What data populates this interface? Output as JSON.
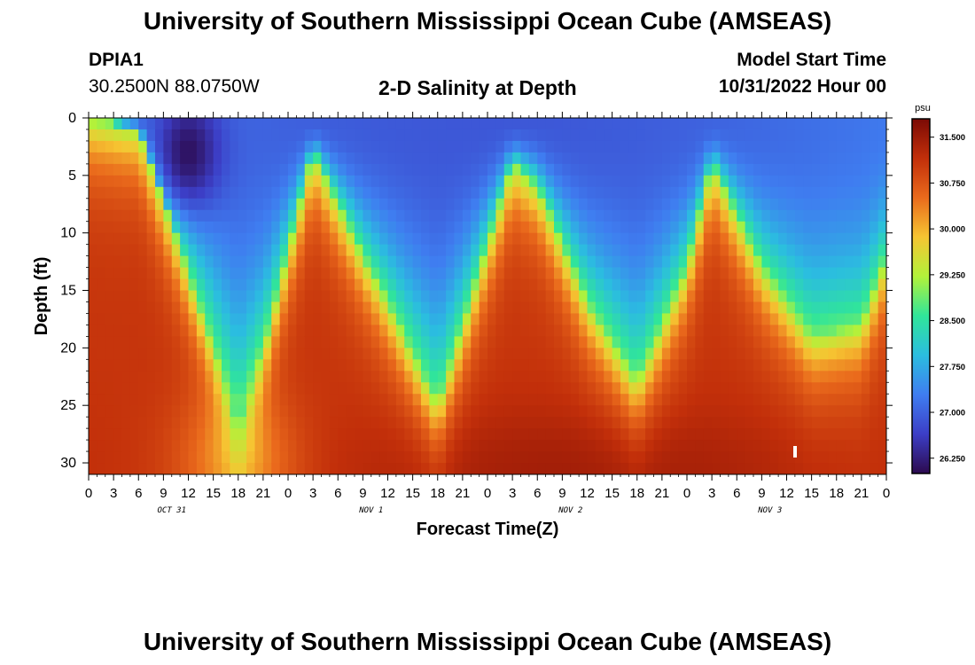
{
  "header": {
    "title": "University of Southern Mississippi Ocean Cube (AMSEAS)",
    "station_id": "DPIA1",
    "coords": "30.2500N  88.0750W",
    "plot_title": "2-D Salinity at Depth",
    "model_start_label": "Model Start Time",
    "model_start_value": "10/31/2022 Hour 00"
  },
  "footer": {
    "title": "University of Southern Mississippi Ocean Cube (AMSEAS)"
  },
  "chart_data": {
    "type": "heatmap",
    "title": "2-D Salinity at Depth",
    "xlabel": "Forecast Time(Z)",
    "ylabel": "Depth (ft)",
    "x_ticks": [
      "0",
      "3",
      "6",
      "9",
      "12",
      "15",
      "18",
      "21",
      "0",
      "3",
      "6",
      "9",
      "12",
      "15",
      "18",
      "21",
      "0",
      "3",
      "6",
      "9",
      "12",
      "15",
      "18",
      "21",
      "0",
      "3",
      "6",
      "9",
      "12",
      "15",
      "18",
      "21",
      "0"
    ],
    "day_labels": [
      "OCT 31",
      "NOV 1",
      "NOV 2",
      "NOV 3"
    ],
    "y_ticks": [
      "0",
      "5",
      "10",
      "15",
      "20",
      "25",
      "30"
    ],
    "xlim_hours": [
      0,
      96
    ],
    "ylim_ft": [
      0,
      31
    ],
    "colorbar": {
      "unit": "psu",
      "range": [
        26.0,
        31.8
      ],
      "ticks": [
        "26.250",
        "27.000",
        "27.750",
        "28.500",
        "29.250",
        "30.000",
        "30.750",
        "31.500"
      ]
    },
    "halocline_depth_ft": [
      {
        "hour": 0,
        "depth": 0
      },
      {
        "hour": 6,
        "depth": 1
      },
      {
        "hour": 18,
        "depth": 26
      },
      {
        "hour": 21,
        "depth": 20
      },
      {
        "hour": 27,
        "depth": 3
      },
      {
        "hour": 33,
        "depth": 12
      },
      {
        "hour": 36,
        "depth": 16
      },
      {
        "hour": 42,
        "depth": 25
      },
      {
        "hour": 51,
        "depth": 4
      },
      {
        "hour": 54,
        "depth": 6
      },
      {
        "hour": 60,
        "depth": 16
      },
      {
        "hour": 66,
        "depth": 23
      },
      {
        "hour": 72,
        "depth": 13
      },
      {
        "hour": 75,
        "depth": 4
      },
      {
        "hour": 81,
        "depth": 13
      },
      {
        "hour": 87,
        "depth": 19
      },
      {
        "hour": 93,
        "depth": 18
      },
      {
        "hour": 96,
        "depth": 12
      }
    ],
    "minimum_salinity_region": {
      "hour": 12,
      "depth": 3,
      "value": 26.1
    },
    "colormap": [
      "#2c0a4e",
      "#3c3ec6",
      "#3f7df0",
      "#2bbde0",
      "#30e59a",
      "#b2f23a",
      "#f6c532",
      "#ea6a1c",
      "#c22f0a",
      "#7b0a05"
    ]
  }
}
